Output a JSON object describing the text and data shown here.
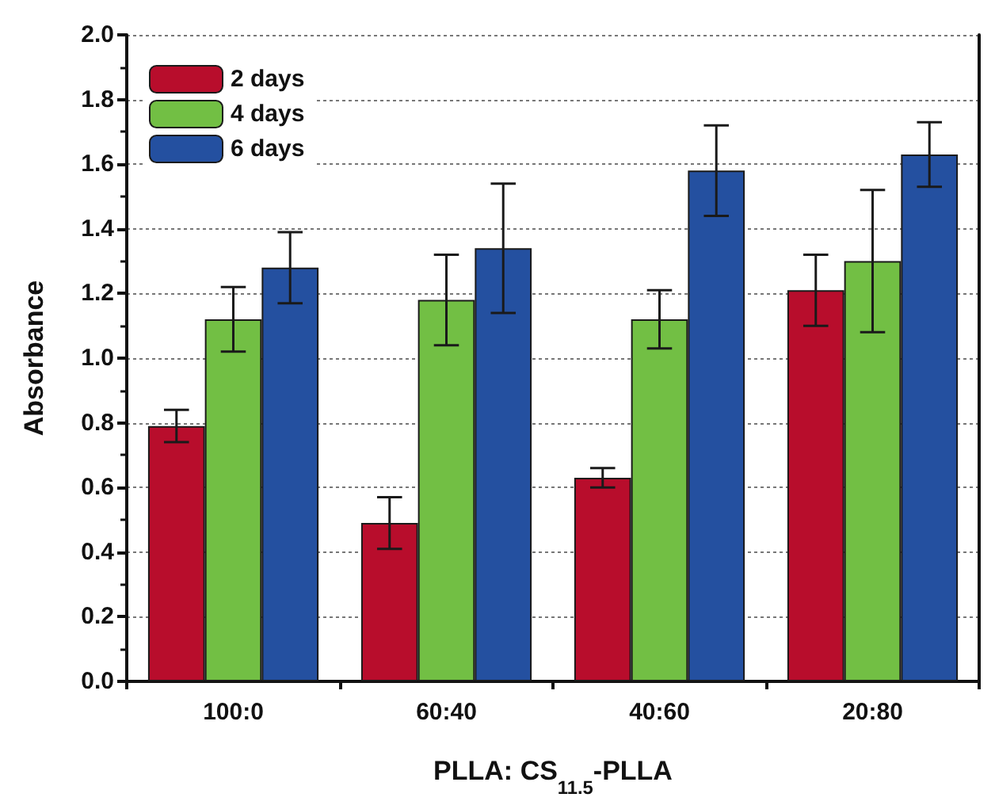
{
  "chart_data": {
    "type": "bar",
    "xlabel": "PLLA: CS$_{11.5}$-PLLA",
    "ylabel": "Absorbance",
    "categories": [
      "100:0",
      "60:40",
      "40:60",
      "20:80"
    ],
    "series": [
      {
        "name": "2 days",
        "color": "#b80d2c",
        "values": [
          0.79,
          0.49,
          0.63,
          1.21
        ],
        "errors": [
          [
            0.74,
            0.84
          ],
          [
            0.41,
            0.57
          ],
          [
            0.6,
            0.66
          ],
          [
            1.1,
            1.32
          ]
        ]
      },
      {
        "name": "4 days",
        "color": "#72bf44",
        "values": [
          1.12,
          1.18,
          1.12,
          1.3
        ],
        "errors": [
          [
            1.02,
            1.22
          ],
          [
            1.04,
            1.32
          ],
          [
            1.03,
            1.21
          ],
          [
            1.08,
            1.52
          ]
        ]
      },
      {
        "name": "6 days",
        "color": "#2450a0",
        "values": [
          1.28,
          1.34,
          1.58,
          1.63
        ],
        "errors": [
          [
            1.17,
            1.39
          ],
          [
            1.14,
            1.54
          ],
          [
            1.44,
            1.72
          ],
          [
            1.53,
            1.73
          ]
        ]
      }
    ],
    "ylim": [
      0,
      2
    ],
    "yticks": [
      {
        "value": 0,
        "label": "0.0"
      },
      {
        "value": 0.2,
        "label": "0.2"
      },
      {
        "value": 0.4,
        "label": "0.4"
      },
      {
        "value": 0.6,
        "label": "0.6"
      },
      {
        "value": 0.8,
        "label": "0.8"
      },
      {
        "value": 1,
        "label": "1.0"
      },
      {
        "value": 1.2,
        "label": "1.2"
      },
      {
        "value": 1.4,
        "label": "1.4"
      },
      {
        "value": 1.6,
        "label": "1.6"
      },
      {
        "value": 1.8,
        "label": "1.8"
      },
      {
        "value": 2,
        "label": "2.0"
      }
    ],
    "grid": "y",
    "legend": "top left"
  }
}
